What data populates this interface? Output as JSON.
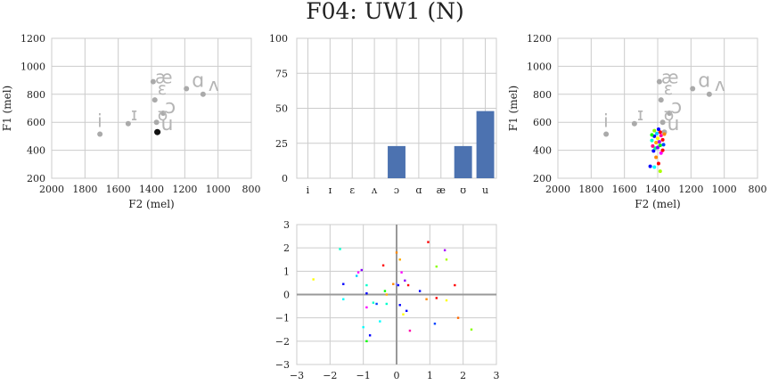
{
  "title": "F04: UW1 (N)",
  "vowel_order": [
    "i",
    "ɪ",
    "ɛ",
    "ʌ",
    "ɔ",
    "ɑ",
    "æ",
    "ʊ",
    "u"
  ],
  "reference_vowels": [
    {
      "label": "i",
      "f2": 1710,
      "f1": 515
    },
    {
      "label": "ɪ",
      "f2": 1540,
      "f1": 590
    },
    {
      "label": "ɛ",
      "f2": 1380,
      "f1": 760
    },
    {
      "label": "ʌ",
      "f2": 1090,
      "f1": 800
    },
    {
      "label": "ɔ",
      "f2": 1330,
      "f1": 665
    },
    {
      "label": "ɑ",
      "f2": 1190,
      "f1": 840
    },
    {
      "label": "æ",
      "f2": 1390,
      "f1": 890
    },
    {
      "label": "ʊ",
      "f2": 1370,
      "f1": 600
    },
    {
      "label": "u",
      "f2": 1360,
      "f1": 530
    }
  ],
  "chart_data": [
    {
      "type": "scatter",
      "title": "",
      "xlabel": "F2 (mel)",
      "ylabel": "F1 (mel)",
      "xlim": [
        2000,
        800
      ],
      "ylim": [
        1200,
        200
      ],
      "x_ticks": [
        2000,
        1800,
        1600,
        1400,
        1200,
        1000,
        800
      ],
      "y_ticks": [
        200,
        400,
        600,
        800,
        1000,
        1200
      ],
      "grid": true,
      "highlight_point": {
        "f2": 1365,
        "f1": 530
      }
    },
    {
      "type": "bar",
      "title": "",
      "xlabel": "",
      "ylabel": "",
      "categories": [
        "i",
        "ɪ",
        "ɛ",
        "ʌ",
        "ɔ",
        "ɑ",
        "æ",
        "ʊ",
        "u"
      ],
      "values": [
        0,
        0,
        0,
        0,
        23,
        0,
        0,
        23,
        48
      ],
      "ylim": [
        0,
        100
      ],
      "y_ticks": [
        0,
        25,
        50,
        75,
        100
      ],
      "bar_color": "#4c72b0",
      "grid": true
    },
    {
      "type": "scatter",
      "title": "",
      "xlabel": "F2 (mel)",
      "ylabel": "F1 (mel)",
      "xlim": [
        2000,
        800
      ],
      "ylim": [
        1200,
        200
      ],
      "x_ticks": [
        2000,
        1800,
        1600,
        1400,
        1200,
        1000,
        800
      ],
      "y_ticks": [
        200,
        400,
        600,
        800,
        1000,
        1200
      ],
      "grid": true,
      "points": [
        {
          "f2": 1445,
          "f1": 285,
          "color": "#0000ff"
        },
        {
          "f2": 1420,
          "f1": 280,
          "color": "#00ffff"
        },
        {
          "f2": 1385,
          "f1": 250,
          "color": "#aaff00"
        },
        {
          "f2": 1395,
          "f1": 305,
          "color": "#ff0000"
        },
        {
          "f2": 1410,
          "f1": 350,
          "color": "#ff8800"
        },
        {
          "f2": 1380,
          "f1": 380,
          "color": "#ff00ff"
        },
        {
          "f2": 1425,
          "f1": 395,
          "color": "#0000ff"
        },
        {
          "f2": 1370,
          "f1": 400,
          "color": "#ff0000"
        },
        {
          "f2": 1415,
          "f1": 415,
          "color": "#00ff88"
        },
        {
          "f2": 1400,
          "f1": 420,
          "color": "#8800ff"
        },
        {
          "f2": 1430,
          "f1": 430,
          "color": "#ff0088"
        },
        {
          "f2": 1385,
          "f1": 435,
          "color": "#00ff00"
        },
        {
          "f2": 1365,
          "f1": 440,
          "color": "#0044ff"
        },
        {
          "f2": 1410,
          "f1": 455,
          "color": "#ffaa00"
        },
        {
          "f2": 1390,
          "f1": 460,
          "color": "#aa00ff"
        },
        {
          "f2": 1435,
          "f1": 470,
          "color": "#00ffcc"
        },
        {
          "f2": 1370,
          "f1": 475,
          "color": "#ff0000"
        },
        {
          "f2": 1400,
          "f1": 485,
          "color": "#ffff00"
        },
        {
          "f2": 1420,
          "f1": 500,
          "color": "#0000ff"
        },
        {
          "f2": 1380,
          "f1": 505,
          "color": "#ff00aa"
        },
        {
          "f2": 1435,
          "f1": 510,
          "color": "#00ff00"
        },
        {
          "f2": 1360,
          "f1": 515,
          "color": "#ff8800"
        },
        {
          "f2": 1405,
          "f1": 520,
          "color": "#00ccff"
        },
        {
          "f2": 1385,
          "f1": 530,
          "color": "#ff0000"
        },
        {
          "f2": 1420,
          "f1": 540,
          "color": "#88ff00"
        },
        {
          "f2": 1395,
          "f1": 550,
          "color": "#0000ff"
        }
      ]
    },
    {
      "type": "scatter",
      "title": "",
      "xlabel": "",
      "ylabel": "",
      "xlim": [
        -3,
        3
      ],
      "ylim": [
        -3,
        3
      ],
      "x_ticks": [
        -3,
        -2,
        -1,
        0,
        1,
        2,
        3
      ],
      "y_ticks": [
        -3,
        -2,
        -1,
        0,
        1,
        2,
        3
      ],
      "grid": true,
      "points": [
        {
          "x": -2.5,
          "y": 0.65,
          "color": "#ffff00"
        },
        {
          "x": -1.7,
          "y": 1.95,
          "color": "#00ffcc"
        },
        {
          "x": -1.6,
          "y": 0.45,
          "color": "#0000ff"
        },
        {
          "x": -1.6,
          "y": -0.2,
          "color": "#00ffff"
        },
        {
          "x": -1.2,
          "y": 0.8,
          "color": "#00ccff"
        },
        {
          "x": -1.15,
          "y": 0.95,
          "color": "#ff00ff"
        },
        {
          "x": -1.05,
          "y": 1.05,
          "color": "#8800ff"
        },
        {
          "x": -1.0,
          "y": -1.4,
          "color": "#00ffff"
        },
        {
          "x": -0.9,
          "y": 0.4,
          "color": "#00ffcc"
        },
        {
          "x": -0.9,
          "y": 0.05,
          "color": "#0000ff"
        },
        {
          "x": -0.9,
          "y": -0.55,
          "color": "#ff00ff"
        },
        {
          "x": -0.9,
          "y": -2.0,
          "color": "#00ff00"
        },
        {
          "x": -0.8,
          "y": -1.75,
          "color": "#0000ff"
        },
        {
          "x": -0.7,
          "y": -0.35,
          "color": "#00ffcc"
        },
        {
          "x": -0.6,
          "y": -0.4,
          "color": "#0044ff"
        },
        {
          "x": -0.5,
          "y": -1.15,
          "color": "#00ffff"
        },
        {
          "x": -0.4,
          "y": 1.25,
          "color": "#ff0000"
        },
        {
          "x": -0.35,
          "y": 0.15,
          "color": "#00ff00"
        },
        {
          "x": -0.3,
          "y": -0.4,
          "color": "#00ffcc"
        },
        {
          "x": -0.3,
          "y": 0.0,
          "color": "#ffaa00"
        },
        {
          "x": -0.1,
          "y": 0.45,
          "color": "#ff8800"
        },
        {
          "x": 0.0,
          "y": 0.45,
          "color": "#8888ff"
        },
        {
          "x": 0.0,
          "y": 1.8,
          "color": "#ff8800"
        },
        {
          "x": 0.05,
          "y": 0.4,
          "color": "#0000ff"
        },
        {
          "x": 0.1,
          "y": 1.5,
          "color": "#ffaa00"
        },
        {
          "x": 0.1,
          "y": -0.45,
          "color": "#0000ff"
        },
        {
          "x": 0.15,
          "y": 0.95,
          "color": "#ff00ff"
        },
        {
          "x": 0.2,
          "y": -0.85,
          "color": "#ffff00"
        },
        {
          "x": 0.25,
          "y": 0.6,
          "color": "#8800ff"
        },
        {
          "x": 0.3,
          "y": -0.7,
          "color": "#0000ff"
        },
        {
          "x": 0.35,
          "y": 0.4,
          "color": "#ff0000"
        },
        {
          "x": 0.4,
          "y": -1.55,
          "color": "#ff00aa"
        },
        {
          "x": 0.7,
          "y": 0.15,
          "color": "#0000ff"
        },
        {
          "x": 0.9,
          "y": -0.2,
          "color": "#ff8800"
        },
        {
          "x": 0.95,
          "y": 2.25,
          "color": "#ff0000"
        },
        {
          "x": 1.15,
          "y": -1.25,
          "color": "#0044ff"
        },
        {
          "x": 1.2,
          "y": -0.15,
          "color": "#ff0000"
        },
        {
          "x": 1.2,
          "y": 1.2,
          "color": "#88ff00"
        },
        {
          "x": 1.45,
          "y": 1.9,
          "color": "#aa00ff"
        },
        {
          "x": 1.5,
          "y": -0.25,
          "color": "#ffff00"
        },
        {
          "x": 1.5,
          "y": 1.5,
          "color": "#aaff00"
        },
        {
          "x": 1.75,
          "y": 0.4,
          "color": "#ff0000"
        },
        {
          "x": 1.85,
          "y": -1.0,
          "color": "#ff6600"
        },
        {
          "x": 2.25,
          "y": -1.5,
          "color": "#88ff00"
        }
      ]
    }
  ]
}
